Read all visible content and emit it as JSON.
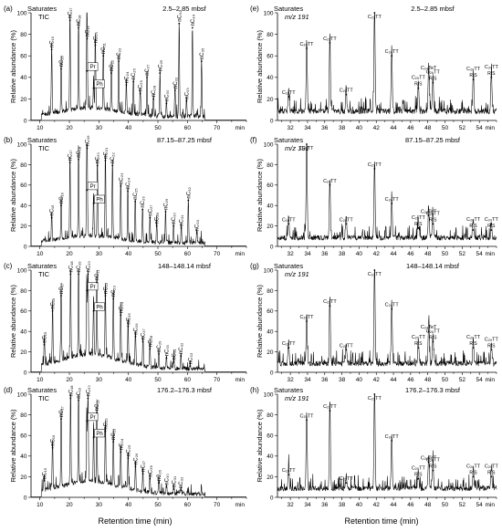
{
  "figure": {
    "x_axis_label": "Retention time (min)"
  },
  "chart_data": [
    {
      "type": "line",
      "id": "a",
      "panel_letter": "(a)",
      "title_line1": "Saturates",
      "title_line2": "TIC",
      "depth": "2.5–2.85 mbsf",
      "ylabel": "Relative abundance (%)",
      "xlabel": "Retention time (min)",
      "x_unit": "min",
      "xlim": [
        7,
        80
      ],
      "ylim": [
        0,
        100
      ],
      "x_ticks": [
        10,
        20,
        30,
        40,
        50,
        60,
        70
      ],
      "y_ticks": [
        0,
        20,
        40,
        60,
        80,
        100
      ],
      "hump": {
        "center": 27,
        "width": 14,
        "height": 8
      },
      "peaks": [
        {
          "label": "nC₁₅",
          "x": 14.0,
          "y": 66
        },
        {
          "label": "nC₁₆",
          "x": 17.2,
          "y": 48
        },
        {
          "label": "nC₁₇",
          "x": 20.2,
          "y": 93
        },
        {
          "label": "nC₁₈",
          "x": 23.1,
          "y": 86
        },
        {
          "label": "Pr",
          "x": 25.9,
          "y": 46,
          "boxed": true
        },
        {
          "label": "nC₁₉",
          "x": 26.0,
          "y": 76
        },
        {
          "label": "Ph",
          "x": 28.2,
          "y": 30,
          "boxed": true
        },
        {
          "label": "nC₂₀",
          "x": 28.8,
          "y": 70
        },
        {
          "label": "nC₂₁",
          "x": 31.5,
          "y": 60
        },
        {
          "label": "nC₂₂",
          "x": 34.2,
          "y": 44
        },
        {
          "label": "nC₂₃",
          "x": 36.7,
          "y": 55
        },
        {
          "label": "nC₂₄",
          "x": 39.3,
          "y": 33
        },
        {
          "label": "nC₂₅",
          "x": 41.7,
          "y": 36
        },
        {
          "label": "nC₂₆",
          "x": 44.0,
          "y": 25
        },
        {
          "label": "nC₂₇",
          "x": 46.3,
          "y": 40
        },
        {
          "label": "nC₂₈",
          "x": 48.5,
          "y": 20
        },
        {
          "label": "nC₂₉",
          "x": 50.7,
          "y": 44
        },
        {
          "label": "nC₃₀",
          "x": 52.9,
          "y": 16
        },
        {
          "label": "nC₃₁",
          "x": 55.8,
          "y": 28
        },
        {
          "label": "nC₃₂",
          "x": 57.2,
          "y": 90
        },
        {
          "label": "nC₃₃",
          "x": 59.7,
          "y": 18
        },
        {
          "label": "nC₃₄",
          "x": 61.7,
          "y": 86
        },
        {
          "label": "nC₃₅",
          "x": 64.8,
          "y": 55
        }
      ]
    },
    {
      "type": "line",
      "id": "b",
      "panel_letter": "(b)",
      "title_line1": "Saturates",
      "title_line2": "TIC",
      "depth": "87.15–87.25 mbsf",
      "ylabel": "Relative abundance (%)",
      "xlabel": "Retention time (min)",
      "x_unit": "min",
      "xlim": [
        7,
        80
      ],
      "ylim": [
        0,
        100
      ],
      "x_ticks": [
        10,
        20,
        30,
        40,
        50,
        60,
        70
      ],
      "y_ticks": [
        0,
        20,
        40,
        60,
        80,
        100
      ],
      "hump": {
        "center": 27,
        "width": 14,
        "height": 7
      },
      "peaks": [
        {
          "label": "nC₁₅",
          "x": 14.0,
          "y": 28
        },
        {
          "label": "nC₁₆",
          "x": 17.2,
          "y": 40
        },
        {
          "label": "nC₁₇",
          "x": 20.2,
          "y": 82
        },
        {
          "label": "nC₁₈",
          "x": 23.1,
          "y": 85
        },
        {
          "label": "Pr",
          "x": 25.9,
          "y": 55,
          "boxed": true
        },
        {
          "label": "nC₁₉",
          "x": 26.0,
          "y": 96
        },
        {
          "label": "Ph",
          "x": 28.2,
          "y": 42,
          "boxed": true
        },
        {
          "label": "nC₂₀",
          "x": 29.5,
          "y": 79
        },
        {
          "label": "nC₂₁",
          "x": 32.2,
          "y": 84
        },
        {
          "label": "nC₂₂",
          "x": 34.6,
          "y": 79
        },
        {
          "label": "nC₂₃",
          "x": 37.4,
          "y": 59
        },
        {
          "label": "nC₂₄",
          "x": 39.8,
          "y": 54
        },
        {
          "label": "nC₂₅",
          "x": 42.3,
          "y": 44
        },
        {
          "label": "nC₂₆",
          "x": 44.8,
          "y": 36
        },
        {
          "label": "nC₂₇",
          "x": 47.3,
          "y": 28
        },
        {
          "label": "nC₂₈",
          "x": 49.6,
          "y": 20
        },
        {
          "label": "nC₂₉",
          "x": 52.6,
          "y": 34
        },
        {
          "label": "nC₃₀",
          "x": 55.3,
          "y": 20
        },
        {
          "label": "nC₃₁",
          "x": 57.9,
          "y": 18
        },
        {
          "label": "nC₃₂",
          "x": 60.3,
          "y": 45
        },
        {
          "label": "nC₃₃",
          "x": 63.2,
          "y": 13
        }
      ]
    },
    {
      "type": "line",
      "id": "c",
      "panel_letter": "(c)",
      "title_line1": "Saturates",
      "title_line2": "TIC",
      "depth": "148–148.14 mbsf",
      "ylabel": "Relative abundance (%)",
      "xlabel": "Retention time (min)",
      "x_unit": "min",
      "xlim": [
        7,
        80
      ],
      "ylim": [
        0,
        100
      ],
      "x_ticks": [
        10,
        20,
        30,
        40,
        50,
        60,
        70
      ],
      "y_ticks": [
        0,
        20,
        40,
        60,
        80,
        100
      ],
      "hump": {
        "center": 27,
        "width": 14,
        "height": 14
      },
      "peaks": [
        {
          "label": "nC₁₅",
          "x": 11.5,
          "y": 27
        },
        {
          "label": "nC₁₆",
          "x": 14.3,
          "y": 60
        },
        {
          "label": "nC₁₇",
          "x": 17.2,
          "y": 75
        },
        {
          "label": "nC₁₈",
          "x": 20.4,
          "y": 96
        },
        {
          "label": "Pr",
          "x": 25.9,
          "y": 80,
          "boxed": true
        },
        {
          "label": "nC₁₉",
          "x": 23.1,
          "y": 96
        },
        {
          "label": "Ph",
          "x": 28.2,
          "y": 60,
          "boxed": true
        },
        {
          "label": "nC₂₀",
          "x": 26.3,
          "y": 96
        },
        {
          "label": "nC₂₁",
          "x": 29.3,
          "y": 88
        },
        {
          "label": "nC₂₂",
          "x": 32.2,
          "y": 75
        },
        {
          "label": "nC₂₃",
          "x": 34.9,
          "y": 72
        },
        {
          "label": "nC₂₄",
          "x": 37.4,
          "y": 56
        },
        {
          "label": "nC₂₅",
          "x": 39.9,
          "y": 45
        },
        {
          "label": "nC₂₆",
          "x": 42.4,
          "y": 35
        },
        {
          "label": "nC₂₇",
          "x": 44.9,
          "y": 30
        },
        {
          "label": "nC₂₈",
          "x": 47.3,
          "y": 23
        },
        {
          "label": "nC₂₉",
          "x": 50.3,
          "y": 18
        },
        {
          "label": "nC₃₀",
          "x": 52.9,
          "y": 14
        },
        {
          "label": "nC₃₁",
          "x": 55.4,
          "y": 10
        },
        {
          "label": "nC₃₂",
          "x": 57.8,
          "y": 16
        },
        {
          "label": "nC₃₃",
          "x": 60.9,
          "y": 6
        }
      ]
    },
    {
      "type": "line",
      "id": "d",
      "panel_letter": "(d)",
      "title_line1": "Saturates",
      "title_line2": "TIC",
      "depth": "176.2–176.3 mbsf",
      "ylabel": "Relative abundance (%)",
      "xlabel": "Retention time (min)",
      "x_unit": "min",
      "xlim": [
        7,
        80
      ],
      "ylim": [
        0,
        100
      ],
      "x_ticks": [
        10,
        20,
        30,
        40,
        50,
        60,
        70
      ],
      "y_ticks": [
        0,
        20,
        40,
        60,
        80,
        100
      ],
      "hump": {
        "center": 27,
        "width": 14,
        "height": 12
      },
      "peaks": [
        {
          "label": "nC₁₅",
          "x": 11.5,
          "y": 16
        },
        {
          "label": "nC₁₆",
          "x": 14.3,
          "y": 48
        },
        {
          "label": "nC₁₇",
          "x": 17.2,
          "y": 76
        },
        {
          "label": "nC₁₈",
          "x": 20.4,
          "y": 96
        },
        {
          "label": "Pr",
          "x": 25.9,
          "y": 74,
          "boxed": true
        },
        {
          "label": "nC₁₉",
          "x": 23.1,
          "y": 94
        },
        {
          "label": "Ph",
          "x": 28.2,
          "y": 58,
          "boxed": true
        },
        {
          "label": "nC₂₀",
          "x": 26.3,
          "y": 96
        },
        {
          "label": "nC₂₁",
          "x": 29.3,
          "y": 82
        },
        {
          "label": "nC₂₂",
          "x": 32.2,
          "y": 64
        },
        {
          "label": "nC₂₃",
          "x": 34.9,
          "y": 54
        },
        {
          "label": "nC₂₄",
          "x": 37.4,
          "y": 44
        },
        {
          "label": "nC₂₅",
          "x": 39.9,
          "y": 38
        },
        {
          "label": "nC₂₆",
          "x": 42.4,
          "y": 30
        },
        {
          "label": "nC₂₇",
          "x": 44.9,
          "y": 23
        },
        {
          "label": "nC₂₈",
          "x": 47.3,
          "y": 18
        },
        {
          "label": "nC₂₉",
          "x": 50.3,
          "y": 14
        },
        {
          "label": "nC₃₀",
          "x": 52.9,
          "y": 10
        },
        {
          "label": "nC₃₁",
          "x": 55.4,
          "y": 8
        },
        {
          "label": "nC₃₂",
          "x": 57.8,
          "y": 7
        }
      ]
    },
    {
      "type": "line",
      "id": "e",
      "panel_letter": "(e)",
      "title_line1": "Saturates",
      "title_line2": "m/z 191",
      "depth": "2.5–2.85 mbsf",
      "ylabel": "Relative abundance (%)",
      "xlabel": "Retention time (min)",
      "x_unit": "min",
      "xlim": [
        30.5,
        56
      ],
      "ylim": [
        0,
        100
      ],
      "x_ticks": [
        32,
        34,
        36,
        38,
        40,
        42,
        44,
        46,
        48,
        50,
        52,
        54
      ],
      "y_ticks": [
        0,
        20,
        40,
        60,
        80,
        100
      ],
      "hump": {
        "center": 43,
        "width": 20,
        "height": 0
      },
      "peaks": [
        {
          "label": "C₁₉TT",
          "x": 31.8,
          "y": 22
        },
        {
          "label": "C₂₀TT",
          "x": 33.9,
          "y": 67
        },
        {
          "label": "C₂₁TT",
          "x": 36.6,
          "y": 72
        },
        {
          "label": "C₂₂TT",
          "x": 38.5,
          "y": 24
        },
        {
          "label": "C₂₃TT",
          "x": 41.8,
          "y": 100
        },
        {
          "label": "C₂₄TT",
          "x": 43.8,
          "y": 60
        },
        {
          "label": "C₂₅TT",
          "x": 46.9,
          "y": 30,
          "rs": true
        },
        {
          "label": "C₂₄TeT",
          "x": 48.1,
          "y": 45
        },
        {
          "label": "C₂₆TT",
          "x": 48.6,
          "y": 35,
          "rs": true
        },
        {
          "label": "C₂₈TT",
          "x": 53.3,
          "y": 38,
          "rs": true
        },
        {
          "label": "C₂₉TT",
          "x": 55.4,
          "y": 40,
          "rs": true
        }
      ]
    },
    {
      "type": "line",
      "id": "f",
      "panel_letter": "(f)",
      "title_line1": "Saturates",
      "title_line2": "m/z 191",
      "depth": "87.15–87.25 mbsf",
      "ylabel": "Relative abundance (%)",
      "xlabel": "Retention time (min)",
      "x_unit": "min",
      "xlim": [
        30.5,
        56
      ],
      "ylim": [
        0,
        100
      ],
      "x_ticks": [
        32,
        34,
        36,
        38,
        40,
        42,
        44,
        46,
        48,
        50,
        52,
        54
      ],
      "y_ticks": [
        0,
        20,
        40,
        60,
        80,
        100
      ],
      "hump": {
        "center": 43,
        "width": 20,
        "height": 0
      },
      "peaks": [
        {
          "label": "C₁₉TT",
          "x": 31.8,
          "y": 22
        },
        {
          "label": "C₂₀TT",
          "x": 33.9,
          "y": 100
        },
        {
          "label": "C₂₁TT",
          "x": 36.6,
          "y": 60
        },
        {
          "label": "C₂₂TT",
          "x": 38.5,
          "y": 22
        },
        {
          "label": "C₂₃TT",
          "x": 41.8,
          "y": 76
        },
        {
          "label": "C₂₄TT",
          "x": 43.8,
          "y": 42
        },
        {
          "label": "C₂₅TT",
          "x": 46.9,
          "y": 18,
          "rs": true
        },
        {
          "label": "C₂₄TeT",
          "x": 48.1,
          "y": 30
        },
        {
          "label": "C₂₆TT",
          "x": 48.6,
          "y": 22,
          "rs": true
        },
        {
          "label": "C₂₈TT",
          "x": 53.3,
          "y": 16,
          "rs": true
        },
        {
          "label": "C₂₉TT",
          "x": 55.4,
          "y": 16,
          "rs": true
        }
      ]
    },
    {
      "type": "line",
      "id": "g",
      "panel_letter": "(g)",
      "title_line1": "Saturates",
      "title_line2": "m/z 191",
      "depth": "148–148.14 mbsf",
      "ylabel": "Relative abundance (%)",
      "xlabel": "Retention time (min)",
      "x_unit": "min",
      "xlim": [
        30.5,
        56
      ],
      "ylim": [
        0,
        100
      ],
      "x_ticks": [
        32,
        34,
        36,
        38,
        40,
        42,
        44,
        46,
        48,
        50,
        52,
        54
      ],
      "y_ticks": [
        0,
        20,
        40,
        60,
        80,
        100
      ],
      "hump": {
        "center": 43,
        "width": 20,
        "height": 0
      },
      "peaks": [
        {
          "label": "C₁₉TT",
          "x": 31.8,
          "y": 24
        },
        {
          "label": "C₂₀TT",
          "x": 33.9,
          "y": 50
        },
        {
          "label": "C₂₁TT",
          "x": 36.6,
          "y": 65
        },
        {
          "label": "C₂₂TT",
          "x": 38.5,
          "y": 22
        },
        {
          "label": "C₂₃TT",
          "x": 41.8,
          "y": 100
        },
        {
          "label": "C₂₄TT",
          "x": 43.8,
          "y": 62
        },
        {
          "label": "C₂₅TT",
          "x": 46.9,
          "y": 24,
          "rs": true
        },
        {
          "label": "C₂₄TeT",
          "x": 48.1,
          "y": 40
        },
        {
          "label": "C₂₆TT",
          "x": 48.6,
          "y": 30,
          "rs": true
        },
        {
          "label": "C₂₈TT",
          "x": 53.3,
          "y": 24,
          "rs": true
        },
        {
          "label": "C₂₉TT",
          "x": 55.4,
          "y": 22,
          "rs": true
        }
      ]
    },
    {
      "type": "line",
      "id": "h",
      "panel_letter": "(h)",
      "title_line1": "Saturates",
      "title_line2": "m/z 191",
      "depth": "176.2–176.3 mbsf",
      "ylabel": "Relative abundance (%)",
      "xlabel": "Retention time (min)",
      "x_unit": "min",
      "xlim": [
        30.5,
        56
      ],
      "ylim": [
        0,
        100
      ],
      "x_ticks": [
        32,
        34,
        36,
        38,
        40,
        42,
        44,
        46,
        48,
        50,
        52,
        54
      ],
      "y_ticks": [
        0,
        20,
        40,
        60,
        80,
        100
      ],
      "hump": {
        "center": 43,
        "width": 20,
        "height": 0
      },
      "peaks": [
        {
          "label": "C₁₉TT",
          "x": 31.8,
          "y": 22
        },
        {
          "label": "C₂₀TT",
          "x": 33.9,
          "y": 75
        },
        {
          "label": "C₂₁TT",
          "x": 36.6,
          "y": 84
        },
        {
          "label": "C₂₂TT",
          "x": 38.5,
          "y": 14
        },
        {
          "label": "C₂₃TT",
          "x": 41.8,
          "y": 100
        },
        {
          "label": "C₂₄TT",
          "x": 43.8,
          "y": 55
        },
        {
          "label": "C₂₅TT",
          "x": 46.9,
          "y": 18,
          "rs": true
        },
        {
          "label": "C₂₄TeT",
          "x": 48.1,
          "y": 34
        },
        {
          "label": "C₂₆TT",
          "x": 48.6,
          "y": 26,
          "rs": true
        },
        {
          "label": "C₂₈TT",
          "x": 53.3,
          "y": 20,
          "rs": true
        },
        {
          "label": "C₂₉TT",
          "x": 55.4,
          "y": 20,
          "rs": true
        }
      ]
    }
  ]
}
